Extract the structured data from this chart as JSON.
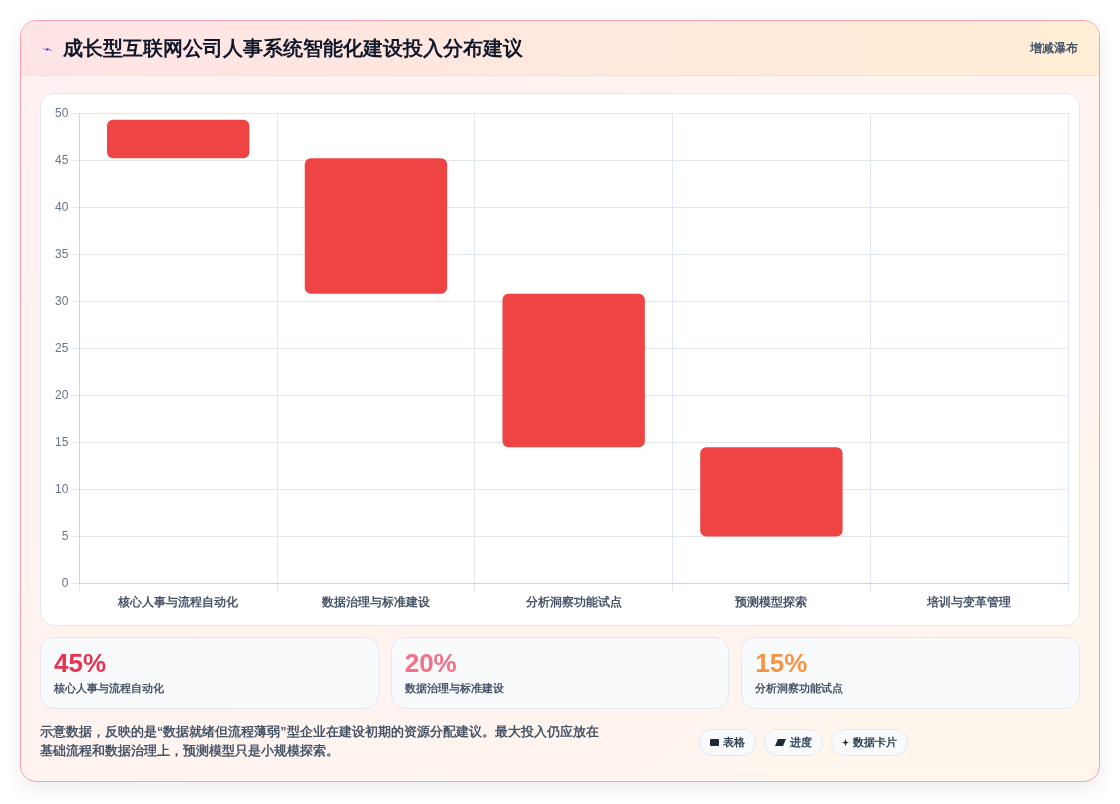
{
  "chart_data": [
    {
      "type": "bar",
      "title": "成长型互联网公司人事系统智能化建设投入分布建议",
      "subtitle": "增减瀑布",
      "categories": [
        "核心人事与流程自动化",
        "数据治理与标准建设",
        "分析洞察功能试点",
        "预测模型探索",
        "培训与变革管理"
      ],
      "values": [
        4.1,
        14.4,
        16.3,
        9.5,
        null
      ],
      "base": [
        45.2,
        30.8,
        14.5,
        5.0,
        null
      ],
      "color": "#ef4444",
      "ylim": [
        0,
        50
      ],
      "yticks": [
        0,
        5,
        10,
        15,
        20,
        25,
        30,
        35,
        40,
        45,
        50
      ],
      "grid": true,
      "annotations": [
        "示意数据，反映的是“数据就绪但流程薄弱”型企业在建设初期的资源分配建议。最大投入仍应放在基础流程和数据治理上，预测模型只是小规模探索。",
        "表格",
        "进度",
        "数据卡片"
      ]
    },
    {
      "type": "other",
      "categories": [
        "核心人事与流程自动化",
        "数据治理与标准建设",
        "分析洞察功能试点"
      ],
      "value_labels": [
        "45%",
        "20%",
        "15%"
      ]
    }
  ]
}
